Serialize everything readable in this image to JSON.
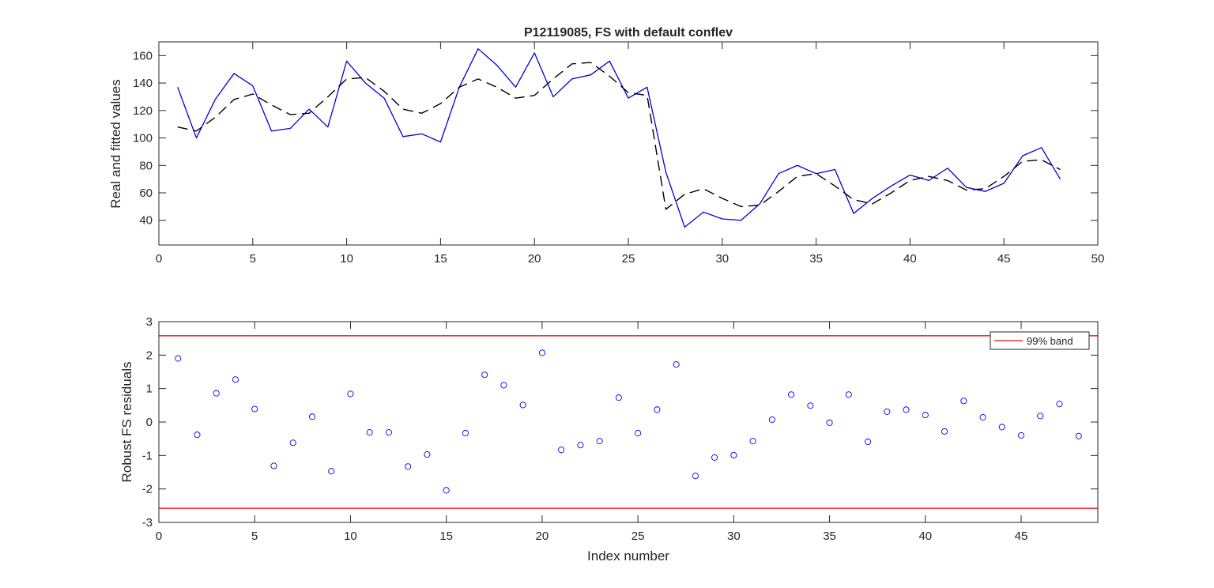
{
  "chart_data": [
    {
      "type": "line",
      "title": "P12119085, FS with default conflev",
      "xlabel": "",
      "ylabel": "Real and fitted values",
      "xlim": [
        0,
        50
      ],
      "ylim": [
        22,
        170
      ],
      "xticks": [
        0,
        5,
        10,
        15,
        20,
        25,
        30,
        35,
        40,
        45,
        50
      ],
      "yticks": [
        40,
        60,
        80,
        100,
        120,
        140,
        160
      ],
      "grid": false,
      "x": [
        1,
        2,
        3,
        4,
        5,
        6,
        7,
        8,
        9,
        10,
        11,
        12,
        13,
        14,
        15,
        16,
        17,
        18,
        19,
        20,
        21,
        22,
        23,
        24,
        25,
        26,
        27,
        28,
        29,
        30,
        31,
        32,
        33,
        34,
        35,
        36,
        37,
        38,
        39,
        40,
        41,
        42,
        43,
        44,
        45,
        46,
        47,
        48
      ],
      "series": [
        {
          "color": "#0000dd",
          "style": "solid",
          "values": [
            137,
            100,
            128,
            147,
            138,
            105,
            107,
            121,
            108,
            156,
            140,
            129,
            101,
            103,
            97,
            137,
            165,
            153,
            137,
            162,
            130,
            143,
            146,
            156,
            129,
            137,
            75,
            35,
            46,
            41,
            40,
            52,
            74,
            80,
            74,
            77,
            45,
            56,
            65,
            73,
            69,
            78,
            64,
            61,
            67,
            87,
            93,
            70
          ]
        },
        {
          "color": "#000000",
          "style": "dashed",
          "values": [
            108,
            105,
            115,
            128,
            132,
            124,
            117,
            118,
            130,
            143,
            144,
            134,
            121,
            118,
            125,
            137,
            143,
            137,
            129,
            131,
            143,
            154,
            155,
            145,
            133,
            131,
            48,
            59,
            63,
            56,
            50,
            51,
            61,
            72,
            74,
            65,
            55,
            52,
            60,
            69,
            72,
            69,
            62,
            63,
            72,
            83,
            84,
            77
          ]
        }
      ]
    },
    {
      "type": "scatter",
      "title": "",
      "xlabel": "Index number",
      "ylabel": "Robust FS residuals",
      "xlim": [
        0,
        49
      ],
      "ylim": [
        -3,
        3
      ],
      "xticks": [
        0,
        5,
        10,
        15,
        20,
        25,
        30,
        35,
        40,
        45
      ],
      "yticks": [
        -3,
        -2,
        -1,
        0,
        1,
        2,
        3
      ],
      "grid": false,
      "legend": {
        "placement": "top-right",
        "entries": [
          "99% band"
        ]
      },
      "band": {
        "upper": 2.58,
        "lower": -2.58,
        "color": "#e8383d"
      },
      "marker_color": "#0000ff",
      "x": [
        1,
        2,
        3,
        4,
        5,
        6,
        7,
        8,
        9,
        10,
        11,
        12,
        13,
        14,
        15,
        16,
        17,
        18,
        19,
        20,
        21,
        22,
        23,
        24,
        25,
        26,
        27,
        28,
        29,
        30,
        31,
        32,
        33,
        34,
        35,
        36,
        37,
        38,
        39,
        40,
        41,
        42,
        43,
        44,
        45,
        46,
        47,
        48
      ],
      "values": [
        1.9,
        -0.38,
        0.86,
        1.27,
        0.39,
        -1.31,
        -0.62,
        0.16,
        -1.47,
        0.84,
        -0.31,
        -0.31,
        -1.33,
        -0.97,
        -2.04,
        -0.33,
        1.41,
        1.1,
        0.51,
        2.07,
        -0.83,
        -0.69,
        -0.57,
        0.73,
        -0.33,
        0.37,
        1.72,
        -1.61,
        -1.06,
        -0.99,
        -0.57,
        0.07,
        0.82,
        0.49,
        -0.02,
        0.82,
        -0.59,
        0.31,
        0.37,
        0.21,
        -0.28,
        0.63,
        0.14,
        -0.15,
        -0.4,
        0.18,
        0.54,
        -0.42
      ]
    }
  ]
}
